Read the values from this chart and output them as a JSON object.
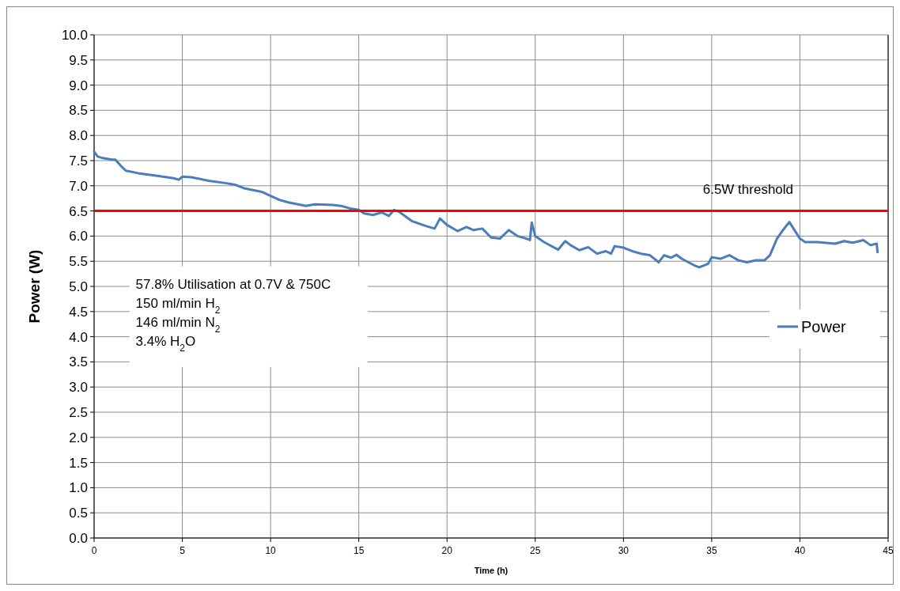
{
  "chart_data": {
    "type": "line",
    "xlabel": "Time (h)",
    "ylabel": "Power (W)",
    "x": [
      0,
      0.2,
      0.5,
      1,
      1.2,
      1.5,
      1.8,
      2.5,
      3.5,
      4.5,
      4.8,
      5,
      5.5,
      6.5,
      7.5,
      8,
      8.5,
      9.5,
      10,
      10.5,
      11,
      12,
      12.5,
      13.5,
      14,
      14.5,
      15,
      15.3,
      15.8,
      16.3,
      16.7,
      17,
      17.3,
      18,
      18.8,
      19.3,
      19.6,
      20,
      20.6,
      21.1,
      21.5,
      22,
      22.5,
      23,
      23.5,
      24,
      24.5,
      24.7,
      24.8,
      25,
      25.5,
      26.3,
      26.7,
      27,
      27.5,
      28,
      28.5,
      29,
      29.3,
      29.5,
      30,
      30.5,
      31,
      31.5,
      32,
      32.3,
      32.7,
      33,
      33.3,
      34,
      34.3,
      34.8,
      35,
      35.5,
      36,
      36.5,
      37,
      37.5,
      38,
      38.3,
      38.7,
      39,
      39.4,
      40,
      40.3,
      41,
      42,
      42.5,
      43,
      43.6,
      44,
      44.35,
      44.4
    ],
    "series": [
      {
        "name": "Power",
        "color": "#4a7ebb",
        "values": [
          7.68,
          7.58,
          7.55,
          7.52,
          7.52,
          7.4,
          7.3,
          7.25,
          7.2,
          7.15,
          7.12,
          7.18,
          7.17,
          7.1,
          7.05,
          7.02,
          6.95,
          6.88,
          6.8,
          6.72,
          6.67,
          6.6,
          6.63,
          6.62,
          6.6,
          6.55,
          6.52,
          6.45,
          6.42,
          6.47,
          6.4,
          6.52,
          6.48,
          6.3,
          6.2,
          6.15,
          6.35,
          6.22,
          6.1,
          6.18,
          6.12,
          6.15,
          5.97,
          5.95,
          6.12,
          6.0,
          5.95,
          5.92,
          6.27,
          6.0,
          5.88,
          5.73,
          5.9,
          5.82,
          5.72,
          5.78,
          5.65,
          5.7,
          5.65,
          5.8,
          5.77,
          5.7,
          5.65,
          5.62,
          5.48,
          5.62,
          5.57,
          5.63,
          5.55,
          5.42,
          5.38,
          5.45,
          5.58,
          5.55,
          5.62,
          5.52,
          5.48,
          5.52,
          5.52,
          5.62,
          5.95,
          6.1,
          6.28,
          5.95,
          5.88,
          5.88,
          5.85,
          5.9,
          5.87,
          5.92,
          5.82,
          5.85,
          5.68
        ]
      }
    ],
    "xlim": [
      0,
      45
    ],
    "xticks": [
      0,
      5,
      10,
      15,
      20,
      25,
      30,
      35,
      40,
      45
    ],
    "ylim": [
      0,
      10
    ],
    "yticks": [
      {
        "value": 0,
        "label": "0.0"
      },
      {
        "value": 0.5,
        "label": "0.5"
      },
      {
        "value": 1,
        "label": "1.0"
      },
      {
        "value": 1.5,
        "label": "1.5"
      },
      {
        "value": 2,
        "label": "2.0"
      },
      {
        "value": 2.5,
        "label": "2.5"
      },
      {
        "value": 3,
        "label": "3.0"
      },
      {
        "value": 3.5,
        "label": "3.5"
      },
      {
        "value": 4,
        "label": "4.0"
      },
      {
        "value": 4.5,
        "label": "4.5"
      },
      {
        "value": 5,
        "label": "5.0"
      },
      {
        "value": 5.5,
        "label": "5.5"
      },
      {
        "value": 6,
        "label": "6.0"
      },
      {
        "value": 6.5,
        "label": "6.5"
      },
      {
        "value": 7,
        "label": "7.0"
      },
      {
        "value": 7.5,
        "label": "7.5"
      },
      {
        "value": 8,
        "label": "8.0"
      },
      {
        "value": 8.5,
        "label": "8.5"
      },
      {
        "value": 9,
        "label": "9.0"
      },
      {
        "value": 9.5,
        "label": "9.5"
      },
      {
        "value": 10,
        "label": "10.0"
      }
    ],
    "ref_lines": [
      {
        "axis": "y",
        "value": 6.5,
        "label": "6.5W threshold",
        "color": "#ff0000"
      }
    ],
    "annotations": [
      "57.8% Utilisation at 0.7V & 750C",
      "150 ml/min H$_{2}$",
      "146 ml/min N$_{2}$",
      "3.4% H$_{2}$O"
    ],
    "grid": true,
    "legend": "right",
    "marker": "none",
    "line_style": "solid"
  }
}
